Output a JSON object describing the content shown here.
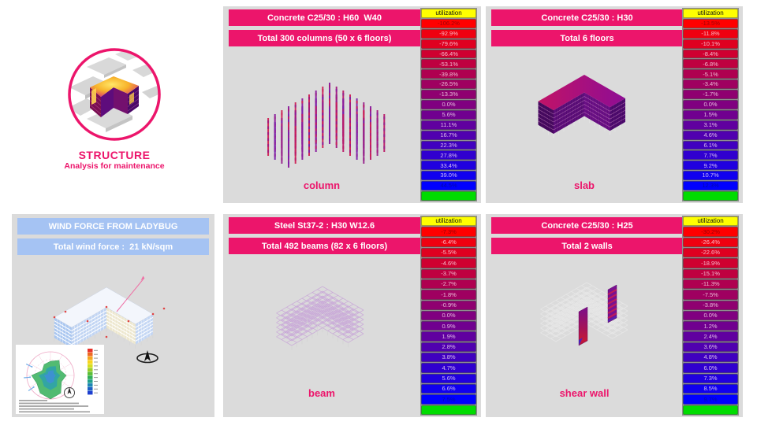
{
  "logo": {
    "title": "STRUCTURE",
    "subtitle": "Analysis for maintenance"
  },
  "colors": {
    "accent_pink": "#EC156B",
    "header_blue": "#A5C3F3",
    "panel_bg": "#DBDBDB",
    "legend_title_bg": "#FFFF00",
    "legend_footer_bg": "#00DC00"
  },
  "panels": {
    "column": {
      "header1": "Concrete C25/30 : H60  W40",
      "header2": "Total 300 columns (50 x 6 floors)",
      "label": "column",
      "legend_title": "utilization",
      "legend_values": [
        "-106.2%",
        "-92.9%",
        "-79.6%",
        "-66.4%",
        "-53.1%",
        "-39.8%",
        "-26.5%",
        "-13.3%",
        "0.0%",
        "5.6%",
        "11.1%",
        "16.7%",
        "22.3%",
        "27.8%",
        "33.4%",
        "39.0%",
        "44.5%"
      ]
    },
    "slab": {
      "header1": "Concrete C25/30 : H30",
      "header2": "Total 6 floors",
      "label": "slab",
      "legend_title": "utilization",
      "legend_values": [
        "-13.5%",
        "-11.8%",
        "-10.1%",
        "-8.4%",
        "-6.8%",
        "-5.1%",
        "-3.4%",
        "-1.7%",
        "0.0%",
        "1.5%",
        "3.1%",
        "4.6%",
        "6.1%",
        "7.7%",
        "9.2%",
        "10.7%",
        "12.3%"
      ]
    },
    "wind": {
      "header1": "WIND FORCE FROM LADYBUG",
      "header2": "Total wind force :  21 kN/sqm"
    },
    "beam": {
      "header1": "Steel St37-2 : H30 W12.6",
      "header2": "Total 492 beams (82 x 6 floors)",
      "label": "beam",
      "legend_title": "utilization",
      "legend_values": [
        "-7.3%",
        "-6.4%",
        "-5.5%",
        "-4.6%",
        "-3.7%",
        "-2.7%",
        "-1.8%",
        "-0.9%",
        "0.0%",
        "0.9%",
        "1.9%",
        "2.8%",
        "3.8%",
        "4.7%",
        "5.6%",
        "6.6%",
        "7.5%"
      ]
    },
    "shear_wall": {
      "header1": "Concrete C25/30 : H25",
      "header2": "Total 2 walls",
      "label": "shear wall",
      "legend_title": "utilization",
      "legend_values": [
        "-30.2%",
        "-26.4%",
        "-22.6%",
        "-18.9%",
        "-15.1%",
        "-11.3%",
        "-7.5%",
        "-3.8%",
        "0.0%",
        "1.2%",
        "2.4%",
        "3.6%",
        "4.8%",
        "6.0%",
        "7.3%",
        "8.5%",
        "9.7%"
      ]
    }
  }
}
